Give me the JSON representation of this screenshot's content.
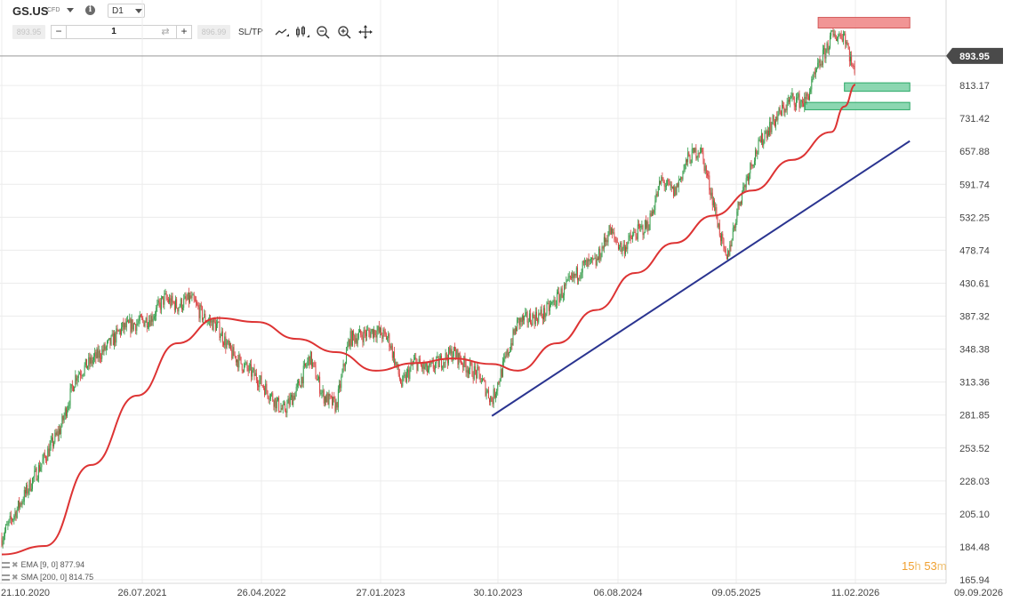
{
  "toolbar": {
    "symbol": "GS.US",
    "instrument_type": "CFD",
    "timeframe": "D1",
    "sell_price": "893.95",
    "buy_price": "896.99",
    "quantity": "1",
    "sltp_label": "SL/TP"
  },
  "indicators": [
    {
      "label": "EMA [9, 0] 877.94"
    },
    {
      "label": "SMA [200, 0] 814.75"
    }
  ],
  "countdown": {
    "hours": "15",
    "h_unit": "h",
    "minutes": "53",
    "m_unit": "m"
  },
  "colors": {
    "bull": "#2e9a45",
    "bear": "#d83b3b",
    "sma": "#dd3333",
    "trendline": "#2a3490",
    "resistance_fill": "#f08a8a",
    "support_fill": "#7fd3a8",
    "current_price_bg": "#4a4a4a"
  },
  "chart_data": {
    "type": "candlestick",
    "y_scale": "log",
    "ylim": [
      165.94,
      1040
    ],
    "y_ticks": [
      "813.17",
      "731.42",
      "657.88",
      "591.74",
      "532.25",
      "478.74",
      "430.61",
      "387.32",
      "348.38",
      "313.36",
      "281.85",
      "253.52",
      "228.03",
      "205.10",
      "184.48",
      "165.94"
    ],
    "x_ticks": [
      "21.10.2020",
      "26.07.2021",
      "26.04.2022",
      "27.01.2023",
      "30.10.2023",
      "06.08.2024",
      "09.05.2025",
      "11.02.2026",
      "09.09.2026"
    ],
    "current_price": "893.95",
    "price_path": [
      [
        "21.10.2020",
        190
      ],
      [
        "2020-12",
        225
      ],
      [
        "2021-02",
        270
      ],
      [
        "2021-03",
        320
      ],
      [
        "2021-05",
        350
      ],
      [
        "2021-06",
        372
      ],
      [
        "2021-08",
        385
      ],
      [
        "2021-09",
        410
      ],
      [
        "2021-10",
        400
      ],
      [
        "2021-11",
        410
      ],
      [
        "2021-12",
        385
      ],
      [
        "2022-01",
        375
      ],
      [
        "2022-02",
        345
      ],
      [
        "2022-03",
        330
      ],
      [
        "2022-04",
        318
      ],
      [
        "2022-06",
        285
      ],
      [
        "2022-07",
        305
      ],
      [
        "2022-08",
        340
      ],
      [
        "2022-09",
        300
      ],
      [
        "2022-10",
        290
      ],
      [
        "2022-11",
        360
      ],
      [
        "2023-01",
        370
      ],
      [
        "2023-02",
        360
      ],
      [
        "2023-03",
        310
      ],
      [
        "2023-04",
        335
      ],
      [
        "2023-05",
        325
      ],
      [
        "2023-07",
        345
      ],
      [
        "2023-08",
        330
      ],
      [
        "2023-09",
        320
      ],
      [
        "2023-10",
        295
      ],
      [
        "2023-11",
        335
      ],
      [
        "2023-12",
        380
      ],
      [
        "2024-01",
        385
      ],
      [
        "2024-02",
        390
      ],
      [
        "2024-03",
        410
      ],
      [
        "2024-05",
        455
      ],
      [
        "2024-06",
        460
      ],
      [
        "2024-07",
        510
      ],
      [
        "2024-08",
        480
      ],
      [
        "2024-09",
        505
      ],
      [
        "2024-10",
        520
      ],
      [
        "2024-11",
        600
      ],
      [
        "2024-12",
        575
      ],
      [
        "2025-01",
        640
      ],
      [
        "2025-02",
        665
      ],
      [
        "2025-03",
        560
      ],
      [
        "2025-04",
        460
      ],
      [
        "2025-05",
        560
      ],
      [
        "2025-06",
        640
      ],
      [
        "2025-07",
        700
      ],
      [
        "2025-08",
        740
      ],
      [
        "2025-09",
        780
      ],
      [
        "2025-10",
        770
      ],
      [
        "2025-11",
        860
      ],
      [
        "2025-12",
        950
      ],
      [
        "2026-01",
        960
      ],
      [
        "2026-02",
        800
      ],
      [
        "11.02.2026",
        894
      ]
    ],
    "series": [
      {
        "name": "SMA [200, 0]",
        "type": "line",
        "values": [
          [
            "21.10.2020",
            180
          ],
          [
            "2021-01",
            185
          ],
          [
            "2021-04",
            240
          ],
          [
            "2021-07",
            300
          ],
          [
            "2021-10",
            355
          ],
          [
            "2022-01",
            385
          ],
          [
            "2022-04",
            380
          ],
          [
            "2022-07",
            360
          ],
          [
            "2022-10",
            345
          ],
          [
            "2023-01",
            325
          ],
          [
            "2023-04",
            333
          ],
          [
            "2023-07",
            338
          ],
          [
            "2023-10",
            332
          ],
          [
            "2023-12",
            325
          ],
          [
            "2024-03",
            355
          ],
          [
            "2024-06",
            395
          ],
          [
            "2024-09",
            445
          ],
          [
            "2024-12",
            490
          ],
          [
            "2025-03",
            535
          ],
          [
            "2025-06",
            580
          ],
          [
            "2025-09",
            640
          ],
          [
            "2025-12",
            700
          ],
          [
            "2026-01",
            760
          ],
          [
            "11.02.2026",
            815
          ]
        ]
      }
    ],
    "trendline": [
      [
        "2023-10",
        281
      ],
      [
        "2026-05",
        680
      ]
    ],
    "zones": [
      {
        "kind": "resistance",
        "low": 978,
        "high": 1012,
        "from": "2025-11",
        "to": "2026-05"
      },
      {
        "kind": "support",
        "low": 798,
        "high": 820,
        "from": "2026-01",
        "to": "2026-05"
      },
      {
        "kind": "support",
        "low": 752,
        "high": 770,
        "from": "2025-10",
        "to": "2026-05"
      }
    ]
  }
}
